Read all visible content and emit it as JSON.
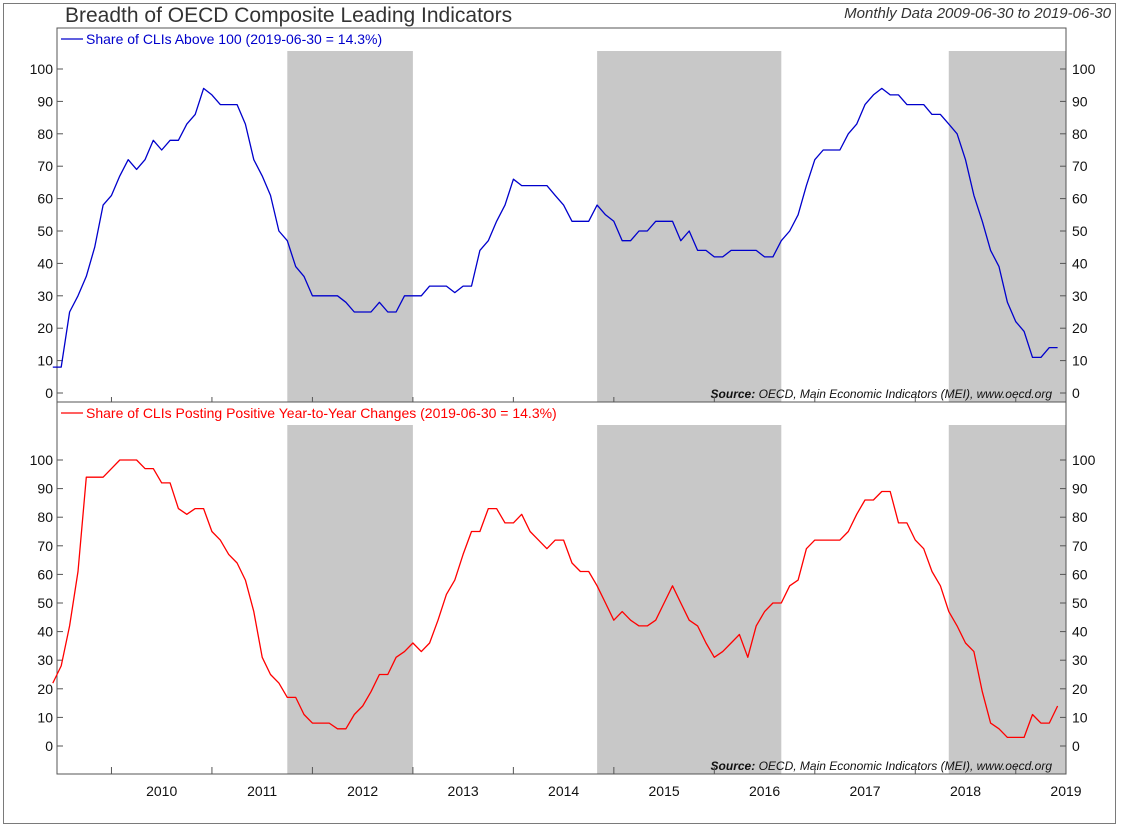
{
  "title": "Breadth of OECD Composite Leading Indicators",
  "subtitle": "Monthly Data 2009-06-30 to 2019-06-30",
  "source_label": "Source:",
  "source_text": "OECD, Main Economic Indicators (MEI), www.oecd.org",
  "colors": {
    "series1": "#0000cc",
    "series2": "#ff0000",
    "shade": "#c8c8c8"
  },
  "chart_data": [
    {
      "type": "line",
      "title": "Breadth of OECD Composite Leading Indicators",
      "legend": "Share of CLIs Above 100 (2019-06-30 = 14.3%)",
      "ylim": [
        0,
        100
      ],
      "yticks": [
        0,
        10,
        20,
        30,
        40,
        50,
        60,
        70,
        80,
        90,
        100
      ],
      "xlim": [
        2009.458,
        2019.5
      ],
      "xticks": [
        "2010",
        "2011",
        "2012",
        "2013",
        "2014",
        "2015",
        "2016",
        "2017",
        "2018",
        "2019"
      ],
      "shaded_periods": [
        [
          "2011-10",
          "2012-12"
        ],
        [
          "2014-11",
          "2016-08"
        ],
        [
          "2018-05",
          "2019-06"
        ]
      ],
      "series": [
        {
          "name": "Share of CLIs Above 100",
          "x": [
            "2009-06",
            "2009-07",
            "2009-08",
            "2009-09",
            "2009-10",
            "2009-11",
            "2009-12",
            "2010-01",
            "2010-02",
            "2010-03",
            "2010-04",
            "2010-05",
            "2010-06",
            "2010-07",
            "2010-08",
            "2010-09",
            "2010-10",
            "2010-11",
            "2010-12",
            "2011-01",
            "2011-02",
            "2011-03",
            "2011-04",
            "2011-05",
            "2011-06",
            "2011-07",
            "2011-08",
            "2011-09",
            "2011-10",
            "2011-11",
            "2011-12",
            "2012-01",
            "2012-02",
            "2012-03",
            "2012-04",
            "2012-05",
            "2012-06",
            "2012-07",
            "2012-08",
            "2012-09",
            "2012-10",
            "2012-11",
            "2012-12",
            "2013-01",
            "2013-02",
            "2013-03",
            "2013-04",
            "2013-05",
            "2013-06",
            "2013-07",
            "2013-08",
            "2013-09",
            "2013-10",
            "2013-11",
            "2013-12",
            "2014-01",
            "2014-02",
            "2014-03",
            "2014-04",
            "2014-05",
            "2014-06",
            "2014-07",
            "2014-08",
            "2014-09",
            "2014-10",
            "2014-11",
            "2014-12",
            "2015-01",
            "2015-02",
            "2015-03",
            "2015-04",
            "2015-05",
            "2015-06",
            "2015-07",
            "2015-08",
            "2015-09",
            "2015-10",
            "2015-11",
            "2015-12",
            "2016-01",
            "2016-02",
            "2016-03",
            "2016-04",
            "2016-05",
            "2016-06",
            "2016-07",
            "2016-08",
            "2016-09",
            "2016-10",
            "2016-11",
            "2016-12",
            "2017-01",
            "2017-02",
            "2017-03",
            "2017-04",
            "2017-05",
            "2017-06",
            "2017-07",
            "2017-08",
            "2017-09",
            "2017-10",
            "2017-11",
            "2017-12",
            "2018-01",
            "2018-02",
            "2018-03",
            "2018-04",
            "2018-05",
            "2018-06",
            "2018-07",
            "2018-08",
            "2018-09",
            "2018-10",
            "2018-11",
            "2018-12",
            "2019-01",
            "2019-02",
            "2019-03",
            "2019-04",
            "2019-05",
            "2019-06"
          ],
          "values": [
            8,
            8,
            25,
            30,
            36,
            45,
            58,
            61,
            67,
            72,
            69,
            72,
            78,
            75,
            78,
            78,
            83,
            86,
            94,
            92,
            89,
            89,
            89,
            83,
            72,
            67,
            61,
            50,
            47,
            39,
            36,
            30,
            30,
            30,
            30,
            28,
            25,
            25,
            25,
            28,
            25,
            25,
            30,
            30,
            30,
            33,
            33,
            33,
            31,
            33,
            33,
            44,
            47,
            53,
            58,
            66,
            64,
            64,
            64,
            64,
            61,
            58,
            53,
            53,
            53,
            58,
            55,
            53,
            47,
            47,
            50,
            50,
            53,
            53,
            53,
            47,
            50,
            44,
            44,
            42,
            42,
            44,
            44,
            44,
            44,
            42,
            42,
            47,
            50,
            55,
            64,
            72,
            75,
            75,
            75,
            80,
            83,
            89,
            92,
            94,
            92,
            92,
            89,
            89,
            89,
            86,
            86,
            83,
            80,
            72,
            61,
            53,
            44,
            39,
            28,
            22,
            19,
            11,
            11,
            14,
            14
          ]
        }
      ]
    },
    {
      "type": "line",
      "legend": "Share of CLIs Posting Positive Year-to-Year Changes (2019-06-30 = 14.3%)",
      "ylim": [
        0,
        100
      ],
      "yticks": [
        0,
        10,
        20,
        30,
        40,
        50,
        60,
        70,
        80,
        90,
        100
      ],
      "xlim": [
        2009.458,
        2019.5
      ],
      "xticks": [
        "2010",
        "2011",
        "2012",
        "2013",
        "2014",
        "2015",
        "2016",
        "2017",
        "2018",
        "2019"
      ],
      "shaded_periods": [
        [
          "2011-10",
          "2012-12"
        ],
        [
          "2014-11",
          "2016-08"
        ],
        [
          "2018-05",
          "2019-06"
        ]
      ],
      "series": [
        {
          "name": "Share of CLIs Posting Positive Year-to-Year Changes",
          "x": [
            "2009-06",
            "2009-07",
            "2009-08",
            "2009-09",
            "2009-10",
            "2009-11",
            "2009-12",
            "2010-01",
            "2010-02",
            "2010-03",
            "2010-04",
            "2010-05",
            "2010-06",
            "2010-07",
            "2010-08",
            "2010-09",
            "2010-10",
            "2010-11",
            "2010-12",
            "2011-01",
            "2011-02",
            "2011-03",
            "2011-04",
            "2011-05",
            "2011-06",
            "2011-07",
            "2011-08",
            "2011-09",
            "2011-10",
            "2011-11",
            "2011-12",
            "2012-01",
            "2012-02",
            "2012-03",
            "2012-04",
            "2012-05",
            "2012-06",
            "2012-07",
            "2012-08",
            "2012-09",
            "2012-10",
            "2012-11",
            "2012-12",
            "2013-01",
            "2013-02",
            "2013-03",
            "2013-04",
            "2013-05",
            "2013-06",
            "2013-07",
            "2013-08",
            "2013-09",
            "2013-10",
            "2013-11",
            "2013-12",
            "2014-01",
            "2014-02",
            "2014-03",
            "2014-04",
            "2014-05",
            "2014-06",
            "2014-07",
            "2014-08",
            "2014-09",
            "2014-10",
            "2014-11",
            "2014-12",
            "2015-01",
            "2015-02",
            "2015-03",
            "2015-04",
            "2015-05",
            "2015-06",
            "2015-07",
            "2015-08",
            "2015-09",
            "2015-10",
            "2015-11",
            "2015-12",
            "2016-01",
            "2016-02",
            "2016-03",
            "2016-04",
            "2016-05",
            "2016-06",
            "2016-07",
            "2016-08",
            "2016-09",
            "2016-10",
            "2016-11",
            "2016-12",
            "2017-01",
            "2017-02",
            "2017-03",
            "2017-04",
            "2017-05",
            "2017-06",
            "2017-07",
            "2017-08",
            "2017-09",
            "2017-10",
            "2017-11",
            "2017-12",
            "2018-01",
            "2018-02",
            "2018-03",
            "2018-04",
            "2018-05",
            "2018-06",
            "2018-07",
            "2018-08",
            "2018-09",
            "2018-10",
            "2018-11",
            "2018-12",
            "2019-01",
            "2019-02",
            "2019-03",
            "2019-04",
            "2019-05",
            "2019-06"
          ],
          "values": [
            22,
            28,
            42,
            61,
            94,
            94,
            94,
            97,
            100,
            100,
            100,
            97,
            97,
            92,
            92,
            83,
            81,
            83,
            83,
            75,
            72,
            67,
            64,
            58,
            47,
            31,
            25,
            22,
            17,
            17,
            11,
            8,
            8,
            8,
            6,
            6,
            11,
            14,
            19,
            25,
            25,
            31,
            33,
            36,
            33,
            36,
            44,
            53,
            58,
            67,
            75,
            75,
            83,
            83,
            78,
            78,
            81,
            75,
            72,
            69,
            72,
            72,
            64,
            61,
            61,
            56,
            50,
            44,
            47,
            44,
            42,
            42,
            44,
            50,
            56,
            50,
            44,
            42,
            36,
            31,
            33,
            36,
            39,
            31,
            42,
            47,
            50,
            50,
            56,
            58,
            69,
            72,
            72,
            72,
            72,
            75,
            81,
            86,
            86,
            89,
            89,
            78,
            78,
            72,
            69,
            61,
            56,
            47,
            42,
            36,
            33,
            19,
            8,
            6,
            3,
            3,
            3,
            11,
            8,
            8,
            14
          ]
        }
      ]
    }
  ]
}
